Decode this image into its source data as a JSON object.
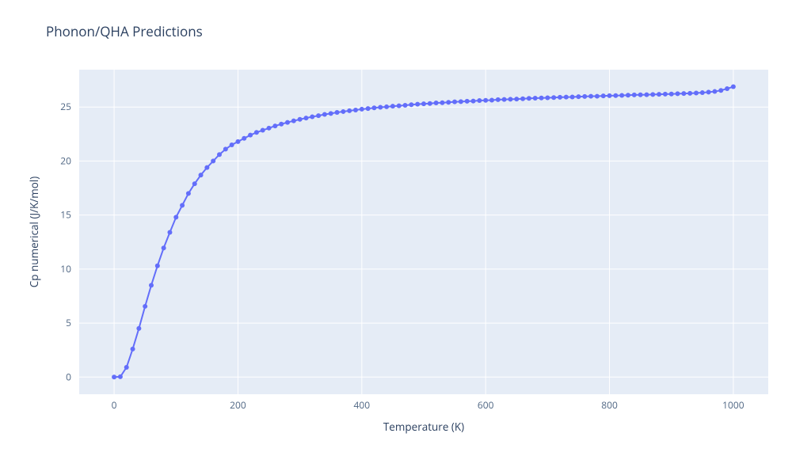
{
  "title": "Phonon/QHA Predictions",
  "chart": {
    "type": "line",
    "background_color": "#ffffff",
    "plot_bgcolor": "#e5ecf6",
    "grid_color": "#ffffff",
    "title_fontsize": 17,
    "axis_title_fontsize": 13.5,
    "tick_fontsize": 12,
    "xlabel": "Temperature (K)",
    "ylabel": "Cp numerical (J/K/mol)",
    "xlim": [
      -56.4,
      1056.4
    ],
    "ylim": [
      -1.59,
      28.46
    ],
    "xticks": [
      0,
      200,
      400,
      600,
      800,
      1000
    ],
    "yticks": [
      0,
      5,
      10,
      15,
      20,
      25
    ],
    "series": [
      {
        "name": "trace0",
        "line_color": "#636efa",
        "marker_color": "#636efa",
        "marker_size": 6,
        "line_width": 2,
        "x": [
          0,
          10,
          20,
          30,
          40,
          50,
          60,
          70,
          80,
          90,
          100,
          110,
          120,
          130,
          140,
          150,
          160,
          170,
          180,
          190,
          200,
          210,
          220,
          230,
          240,
          250,
          260,
          270,
          280,
          290,
          300,
          310,
          320,
          330,
          340,
          350,
          360,
          370,
          380,
          390,
          400,
          410,
          420,
          430,
          440,
          450,
          460,
          470,
          480,
          490,
          500,
          510,
          520,
          530,
          540,
          550,
          560,
          570,
          580,
          590,
          600,
          610,
          620,
          630,
          640,
          650,
          660,
          670,
          680,
          690,
          700,
          710,
          720,
          730,
          740,
          750,
          760,
          770,
          780,
          790,
          800,
          810,
          820,
          830,
          840,
          850,
          860,
          870,
          880,
          890,
          900,
          910,
          920,
          930,
          940,
          950,
          960,
          970,
          980,
          990,
          1000
        ],
        "y": [
          0.0,
          0.03,
          0.9,
          2.6,
          4.5,
          6.55,
          8.5,
          10.3,
          11.95,
          13.4,
          14.8,
          15.9,
          17.0,
          17.9,
          18.7,
          19.4,
          20.0,
          20.6,
          21.1,
          21.5,
          21.8,
          22.1,
          22.4,
          22.65,
          22.85,
          23.05,
          23.25,
          23.42,
          23.58,
          23.72,
          23.86,
          23.98,
          24.1,
          24.2,
          24.32,
          24.4,
          24.5,
          24.58,
          24.66,
          24.72,
          24.8,
          24.86,
          24.92,
          24.98,
          25.02,
          25.08,
          25.12,
          25.16,
          25.22,
          25.26,
          25.3,
          25.33,
          25.38,
          25.4,
          25.44,
          25.48,
          25.5,
          25.54,
          25.56,
          25.6,
          25.62,
          25.64,
          25.68,
          25.7,
          25.72,
          25.74,
          25.77,
          25.8,
          25.82,
          25.84,
          25.86,
          25.88,
          25.9,
          25.92,
          25.93,
          25.96,
          25.98,
          26.0,
          26.0,
          26.03,
          26.05,
          26.06,
          26.08,
          26.1,
          26.12,
          26.13,
          26.14,
          26.16,
          26.18,
          26.2,
          26.21,
          26.23,
          26.25,
          26.27,
          26.3,
          26.33,
          26.38,
          26.44,
          26.54,
          26.7,
          26.88
        ]
      }
    ]
  }
}
